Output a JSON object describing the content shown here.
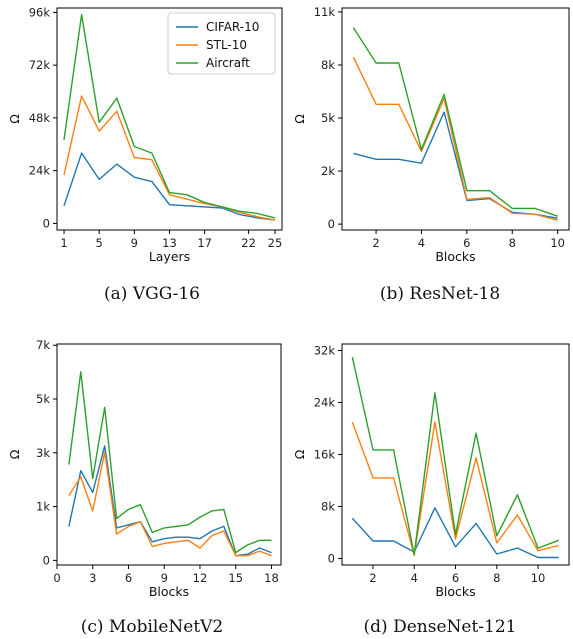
{
  "colors": {
    "cifar": "#1f77b4",
    "stl": "#ff7f0e",
    "aircraft": "#2ca02c"
  },
  "legend": [
    "CIFAR-10",
    "STL-10",
    "Aircraft"
  ],
  "chart_data": [
    {
      "type": "line",
      "caption": "(a)  VGG-16",
      "xlabel": "Layers",
      "ylabel": "Ω",
      "xlim": [
        0.2,
        25.8
      ],
      "ylim": [
        -3000,
        98000
      ],
      "xticks": [
        1,
        5,
        9,
        13,
        17,
        22,
        25
      ],
      "xtick_labels": [
        "1",
        "5",
        "9",
        "13",
        "17",
        "22",
        "25"
      ],
      "yticks": [
        0,
        24000,
        48000,
        72000,
        96000
      ],
      "ytick_labels": [
        "0",
        "24k",
        "48k",
        "72k",
        "96k"
      ],
      "legend_position": "top-right",
      "x": [
        1,
        3,
        5,
        7,
        9,
        11,
        13,
        15,
        17,
        19,
        21,
        23,
        25
      ],
      "series": [
        {
          "name": "CIFAR-10",
          "values": [
            8000,
            32000,
            20000,
            27000,
            21000,
            19000,
            8500,
            8000,
            7500,
            7000,
            4000,
            2500,
            1500
          ]
        },
        {
          "name": "STL-10",
          "values": [
            22000,
            58000,
            42000,
            51000,
            30000,
            29000,
            13000,
            11000,
            9000,
            7500,
            5000,
            3000,
            1500
          ]
        },
        {
          "name": "Aircraft",
          "values": [
            38000,
            95000,
            46000,
            57000,
            35000,
            32000,
            14000,
            13000,
            9500,
            7500,
            5500,
            4500,
            2500
          ]
        }
      ]
    },
    {
      "type": "line",
      "caption": "(b)  ResNet-18",
      "xlabel": "Blocks",
      "ylabel": "Ω",
      "xlim": [
        0.5,
        10.5
      ],
      "ylim": [
        -300,
        11000
      ],
      "xticks": [
        2,
        4,
        6,
        8,
        10
      ],
      "xtick_labels": [
        "2",
        "4",
        "6",
        "8",
        "10"
      ],
      "yticks": [
        0,
        2700,
        5400,
        8100,
        10800
      ],
      "ytick_labels": [
        "0",
        "2k",
        "5k",
        "8k",
        "11k"
      ],
      "x": [
        1,
        2,
        3,
        4,
        5,
        6,
        7,
        8,
        9,
        10
      ],
      "series": [
        {
          "name": "CIFAR-10",
          "values": [
            3600,
            3300,
            3300,
            3100,
            5700,
            1200,
            1300,
            600,
            500,
            300
          ]
        },
        {
          "name": "STL-10",
          "values": [
            8500,
            6100,
            6100,
            3700,
            6400,
            1250,
            1350,
            550,
            500,
            200
          ]
        },
        {
          "name": "Aircraft",
          "values": [
            10000,
            8200,
            8200,
            3800,
            6600,
            1700,
            1700,
            800,
            800,
            400
          ]
        }
      ]
    },
    {
      "type": "line",
      "caption": "(c)  MobileNetV2",
      "xlabel": "Blocks",
      "ylabel": "Ω",
      "xlim": [
        0,
        18.8
      ],
      "ylim": [
        -150,
        7000
      ],
      "xticks": [
        0,
        3,
        6,
        9,
        12,
        15,
        18
      ],
      "xtick_labels": [
        "0",
        "3",
        "6",
        "9",
        "12",
        "15",
        "18"
      ],
      "yticks": [
        0,
        1740,
        3480,
        5220,
        6960
      ],
      "ytick_labels": [
        "0",
        "1k",
        "3k",
        "5k",
        "7k"
      ],
      "x": [
        1,
        2,
        3,
        4,
        5,
        6,
        7,
        8,
        9,
        10,
        11,
        12,
        13,
        14,
        15,
        16,
        17,
        18
      ],
      "series": [
        {
          "name": "CIFAR-10",
          "values": [
            1100,
            2900,
            2200,
            3700,
            1050,
            1150,
            1250,
            600,
            700,
            750,
            750,
            700,
            950,
            1100,
            150,
            200,
            400,
            250
          ]
        },
        {
          "name": "STL-10",
          "values": [
            2100,
            2700,
            1600,
            3500,
            850,
            1100,
            1250,
            450,
            550,
            600,
            650,
            400,
            800,
            950,
            150,
            150,
            300,
            150
          ]
        },
        {
          "name": "Aircraft",
          "values": [
            3100,
            6100,
            2650,
            4950,
            1350,
            1650,
            1800,
            900,
            1050,
            1100,
            1150,
            1400,
            1600,
            1650,
            250,
            500,
            650,
            650
          ]
        }
      ]
    },
    {
      "type": "line",
      "caption": "(d)  DenseNet-121",
      "xlabel": "Blocks",
      "ylabel": "Ω",
      "xlim": [
        0.5,
        11.5
      ],
      "ylim": [
        -1000,
        33000
      ],
      "xticks": [
        2,
        4,
        6,
        8,
        10
      ],
      "xtick_labels": [
        "2",
        "4",
        "6",
        "8",
        "10"
      ],
      "yticks": [
        0,
        8000,
        16000,
        24000,
        32000
      ],
      "ytick_labels": [
        "0",
        "8k",
        "16k",
        "24k",
        "32k"
      ],
      "x": [
        1,
        2,
        3,
        4,
        5,
        6,
        7,
        8,
        9,
        10,
        11
      ],
      "series": [
        {
          "name": "CIFAR-10",
          "values": [
            6200,
            2700,
            2700,
            1000,
            7800,
            1800,
            5400,
            700,
            1600,
            150,
            150
          ]
        },
        {
          "name": "STL-10",
          "values": [
            21000,
            12400,
            12400,
            500,
            21000,
            3000,
            15500,
            2400,
            6700,
            1200,
            2000
          ]
        },
        {
          "name": "Aircraft",
          "values": [
            31000,
            16700,
            16700,
            600,
            25500,
            3700,
            19300,
            3500,
            9800,
            1600,
            2800
          ]
        }
      ]
    }
  ]
}
